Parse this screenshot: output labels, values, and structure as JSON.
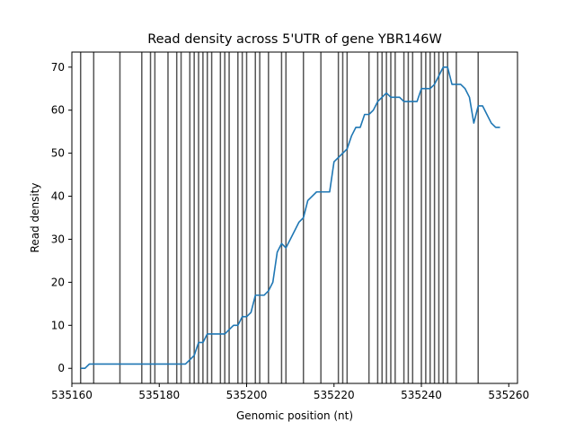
{
  "chart_data": {
    "type": "line",
    "title": "Read density across 5'UTR of gene YBR146W",
    "xlabel": "Genomic position (nt)",
    "ylabel": "Read density",
    "xlim": [
      535160,
      535262
    ],
    "ylim": [
      -3.5,
      73.5
    ],
    "xticks": [
      535160,
      535180,
      535200,
      535220,
      535240,
      535260
    ],
    "xtick_labels": [
      "535160",
      "535180",
      "535200",
      "535220",
      "535240",
      "535260"
    ],
    "yticks": [
      0,
      10,
      20,
      30,
      40,
      50,
      60,
      70
    ],
    "ytick_labels": [
      "0",
      "10",
      "20",
      "30",
      "40",
      "50",
      "60",
      "70"
    ],
    "grid": false,
    "line_color": "#1f77b4",
    "vline_color": "#555555",
    "vlines": [
      535162,
      535165,
      535171,
      535176,
      535178,
      535179,
      535182,
      535184,
      535185,
      535187,
      535188,
      535189,
      535190,
      535191,
      535192,
      535194,
      535195,
      535196,
      535198,
      535199,
      535200,
      535202,
      535203,
      535205,
      535208,
      535209,
      535213,
      535217,
      535221,
      535222,
      535223,
      535228,
      535230,
      535231,
      535232,
      535233,
      535234,
      535236,
      535237,
      535238,
      535240,
      535241,
      535242,
      535243,
      535244,
      535245,
      535246,
      535248,
      535253
    ],
    "series": [
      {
        "x": [
          535162,
          535163,
          535164,
          535165,
          535166,
          535167,
          535168,
          535169,
          535170,
          535171,
          535172,
          535173,
          535174,
          535175,
          535176,
          535177,
          535178,
          535179,
          535180,
          535181,
          535182,
          535183,
          535184,
          535185,
          535186,
          535187,
          535188,
          535189,
          535190,
          535191,
          535192,
          535193,
          535194,
          535195,
          535196,
          535197,
          535198,
          535199,
          535200,
          535201,
          535202,
          535203,
          535204,
          535205,
          535206,
          535207,
          535208,
          535209,
          535210,
          535211,
          535212,
          535213,
          535214,
          535215,
          535216,
          535217,
          535218,
          535219,
          535220,
          535221,
          535222,
          535223,
          535224,
          535225,
          535226,
          535227,
          535228,
          535229,
          535230,
          535231,
          535232,
          535233,
          535234,
          535235,
          535236,
          535237,
          535238,
          535239,
          535240,
          535241,
          535242,
          535243,
          535244,
          535245,
          535246,
          535247,
          535248,
          535249,
          535250,
          535251,
          535252,
          535253,
          535254,
          535255,
          535256,
          535257,
          535258
        ],
        "values": [
          0,
          0,
          1,
          1,
          1,
          1,
          1,
          1,
          1,
          1,
          1,
          1,
          1,
          1,
          1,
          1,
          1,
          1,
          1,
          1,
          1,
          1,
          1,
          1,
          1,
          2,
          3,
          6,
          6,
          8,
          8,
          8,
          8,
          8,
          9,
          10,
          10,
          12,
          12,
          13,
          17,
          17,
          17,
          18,
          20,
          27,
          29,
          28,
          30,
          32,
          34,
          35,
          39,
          40,
          41,
          41,
          41,
          41,
          48,
          49,
          50,
          51,
          54,
          56,
          56,
          59,
          59,
          60,
          62,
          63,
          64,
          63,
          63,
          63,
          62,
          62,
          62,
          62,
          65,
          65,
          65,
          66,
          68,
          70,
          70,
          66,
          66,
          66,
          65,
          63,
          57,
          61,
          61,
          59,
          57,
          56,
          56
        ]
      }
    ]
  }
}
